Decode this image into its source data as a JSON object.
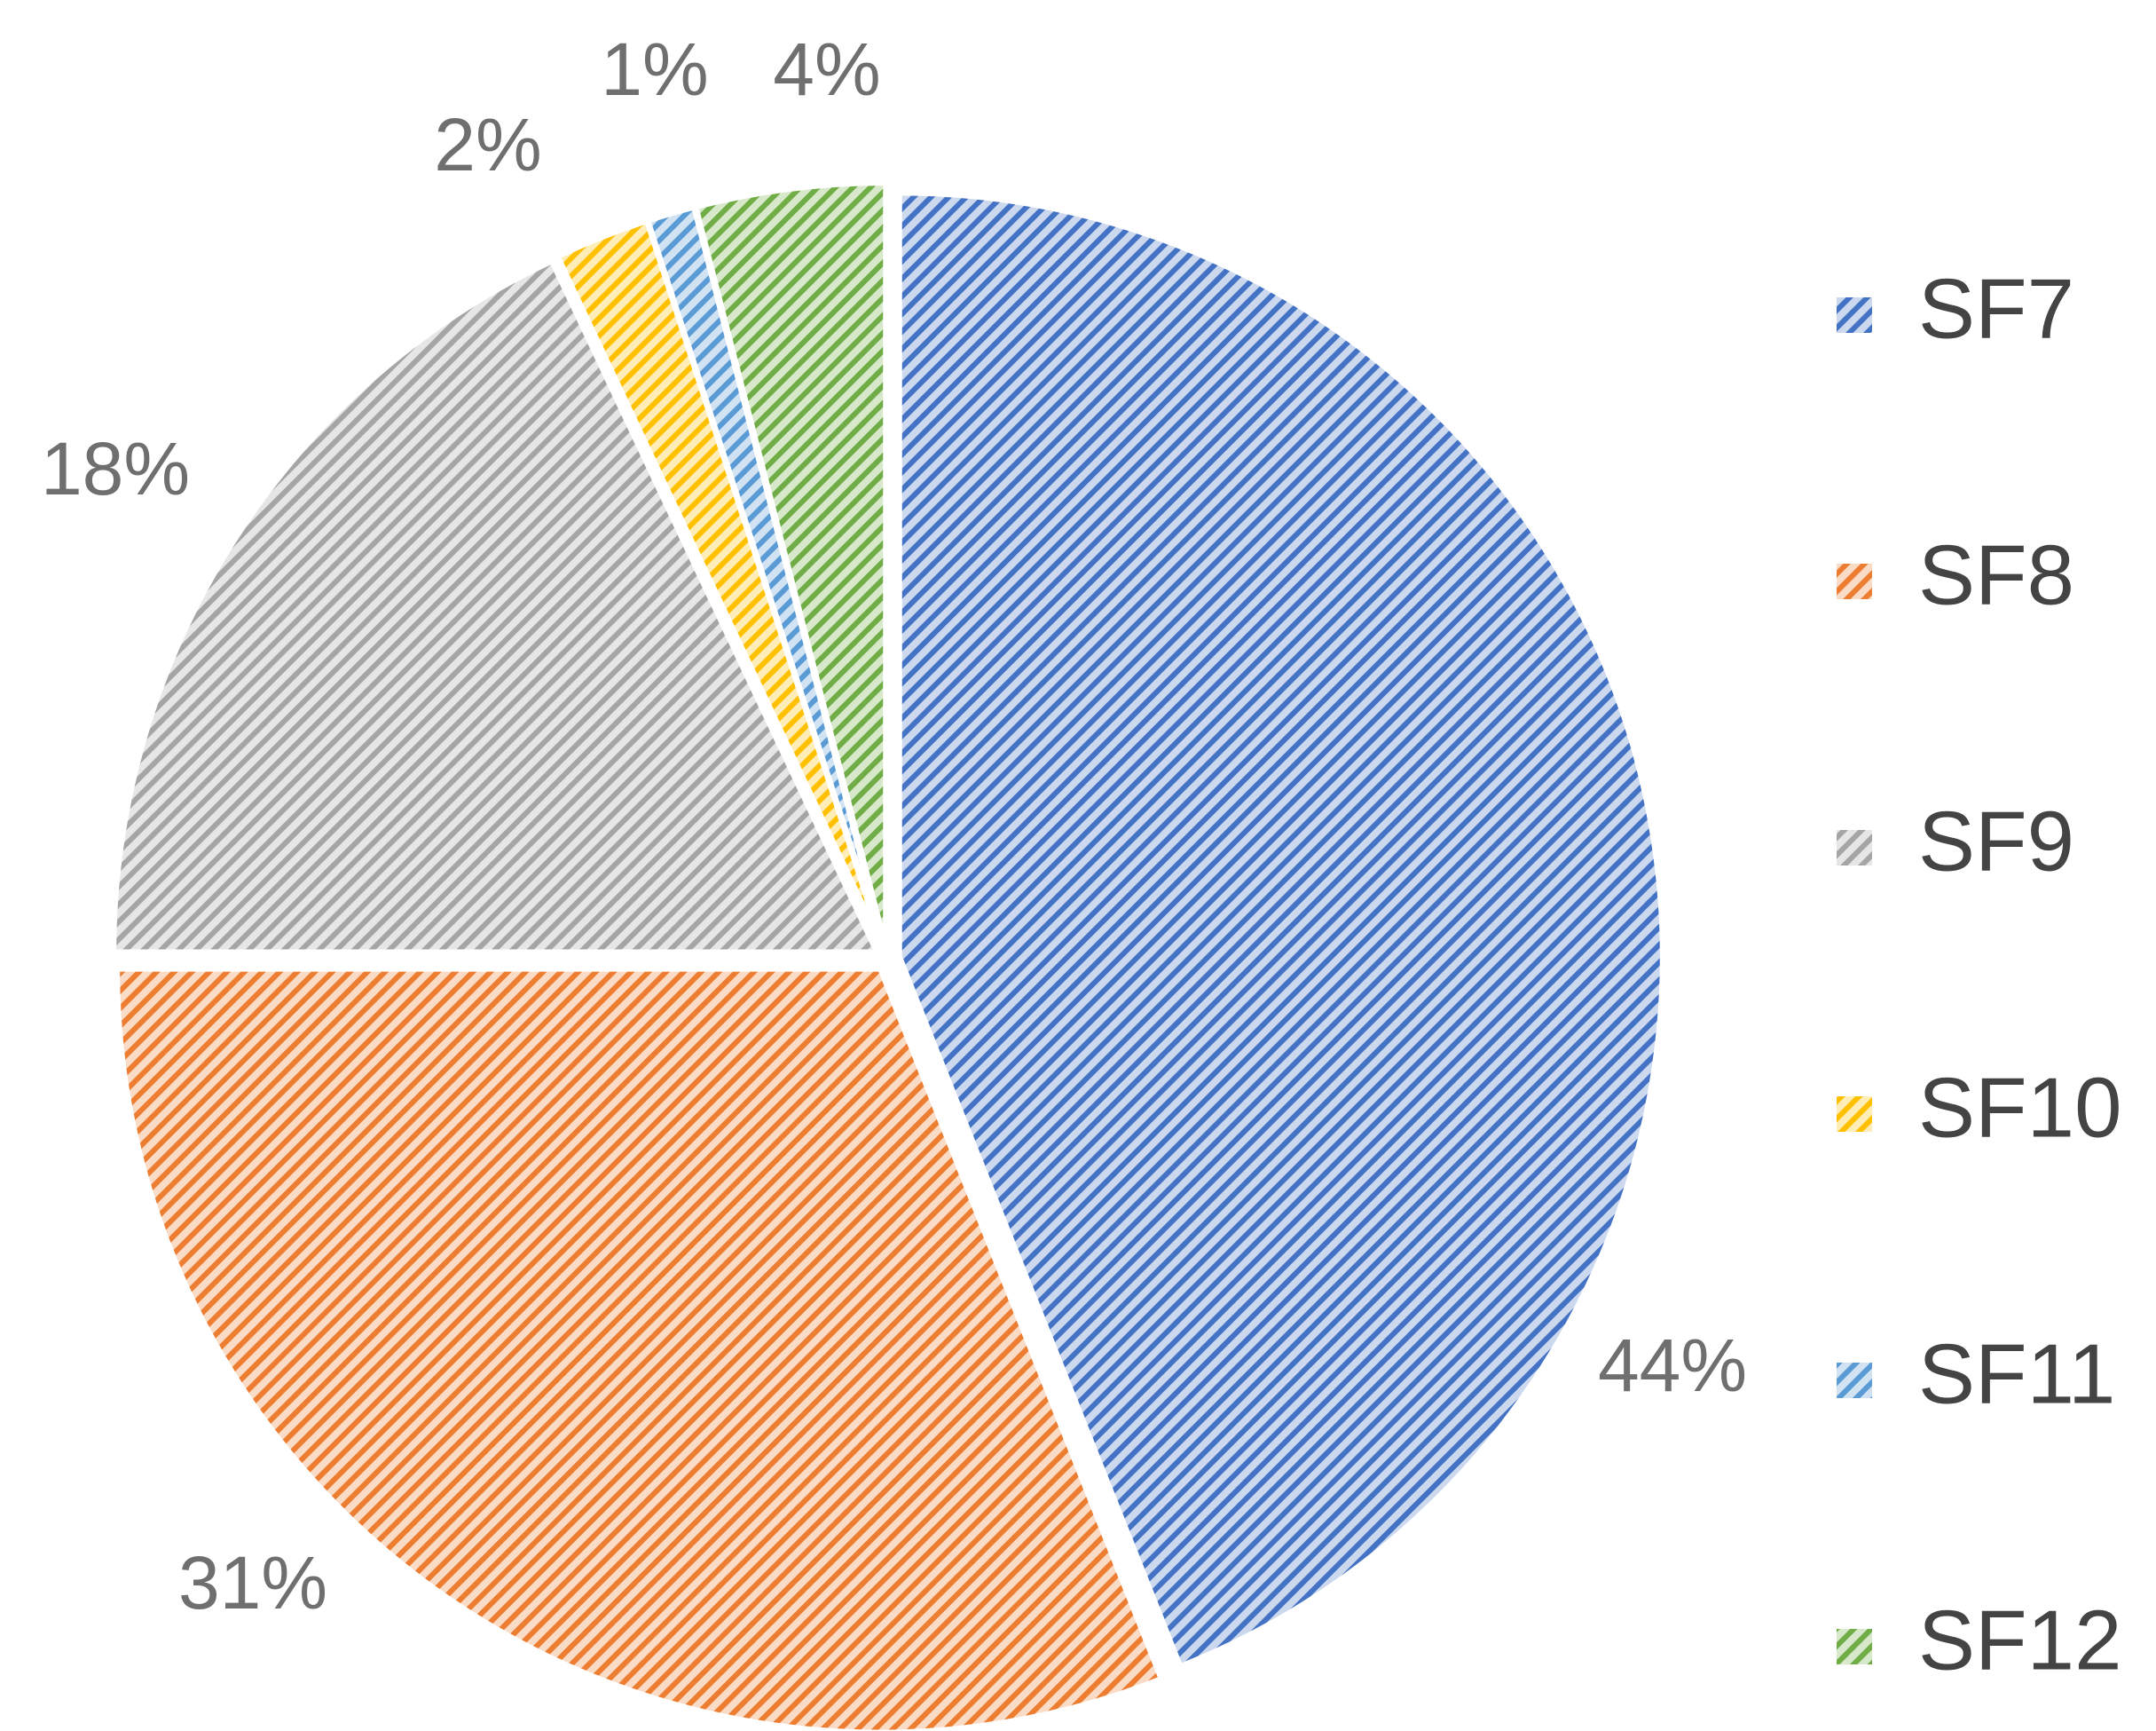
{
  "chart_data": {
    "type": "pie",
    "title": "",
    "start_angle_deg": 0,
    "direction": "clockwise",
    "legend_position": "right",
    "fill_style": "diagonal-hatch",
    "slices": [
      {
        "name": "SF7",
        "value": 44,
        "label": "44%",
        "color": "#4472c4"
      },
      {
        "name": "SF8",
        "value": 31,
        "label": "31%",
        "color": "#ed7d31"
      },
      {
        "name": "SF9",
        "value": 18,
        "label": "18%",
        "color": "#a5a5a5"
      },
      {
        "name": "SF10",
        "value": 2,
        "label": "2%",
        "color": "#ffc000"
      },
      {
        "name": "SF11",
        "value": 1,
        "label": "1%",
        "color": "#5b9bd5"
      },
      {
        "name": "SF12",
        "value": 4,
        "label": "4%",
        "color": "#70ad47"
      }
    ]
  }
}
